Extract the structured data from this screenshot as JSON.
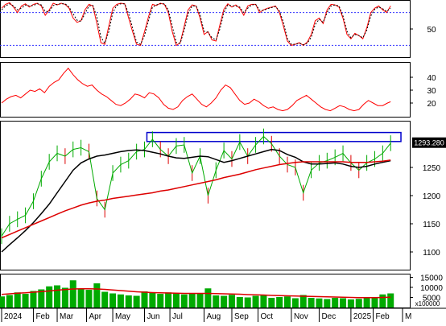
{
  "chart_data": [
    {
      "type": "line",
      "panel": "stochastic",
      "ylim": [
        0,
        100
      ],
      "y_ticks": [
        50
      ],
      "reference_lines": [
        80,
        20
      ],
      "grid": false,
      "series": [
        {
          "role": "k",
          "color": "#ff0000",
          "style": "solid"
        },
        {
          "role": "d",
          "color": "#000000",
          "style": "dashed"
        }
      ],
      "x": [
        0,
        5,
        10,
        15,
        20,
        25,
        30,
        35,
        40,
        45,
        50,
        55,
        60,
        65,
        70,
        75,
        80,
        85,
        90,
        95,
        100,
        105,
        110,
        115,
        120,
        125,
        130,
        135,
        140,
        145,
        150,
        155,
        160,
        165,
        170,
        175,
        180,
        185,
        190,
        195,
        200,
        205,
        210,
        215,
        220,
        225,
        230,
        235,
        240,
        245,
        250,
        255,
        260,
        265,
        270,
        275,
        280,
        285,
        290,
        295,
        300,
        305,
        310,
        315,
        320,
        325,
        330,
        335,
        340,
        345,
        350,
        355,
        360,
        365,
        370,
        375,
        380,
        385,
        390,
        395,
        400,
        405,
        410,
        415,
        420,
        425,
        430,
        435,
        440,
        445,
        450,
        455,
        460,
        465,
        470,
        475,
        480,
        485,
        490
      ],
      "values_k": [
        88,
        95,
        98,
        90,
        80,
        92,
        96,
        90,
        95,
        97,
        92,
        75,
        85,
        97,
        94,
        97,
        95,
        88,
        70,
        62,
        65,
        85,
        95,
        92,
        60,
        25,
        22,
        55,
        88,
        95,
        97,
        96,
        70,
        45,
        22,
        20,
        45,
        72,
        95,
        93,
        97,
        95,
        80,
        45,
        20,
        25,
        55,
        85,
        94,
        92,
        70,
        40,
        45,
        30,
        28,
        58,
        86,
        96,
        90,
        94,
        88,
        75,
        92,
        95,
        95,
        80,
        85,
        88,
        90,
        92,
        80,
        55,
        28,
        20,
        22,
        25,
        20,
        26,
        40,
        65,
        70,
        60,
        85,
        95,
        94,
        90,
        70,
        40,
        32,
        42,
        38,
        32,
        52,
        80,
        88,
        92,
        85,
        80,
        92
      ],
      "values_d": [
        85,
        92,
        96,
        92,
        85,
        88,
        94,
        92,
        93,
        96,
        94,
        82,
        82,
        93,
        95,
        96,
        96,
        90,
        78,
        66,
        64,
        78,
        92,
        93,
        72,
        35,
        24,
        45,
        80,
        93,
        96,
        96,
        78,
        52,
        26,
        22,
        38,
        65,
        90,
        94,
        96,
        96,
        85,
        55,
        25,
        24,
        48,
        78,
        92,
        92,
        76,
        46,
        44,
        34,
        30,
        50,
        80,
        94,
        92,
        92,
        90,
        80,
        88,
        94,
        95,
        84,
        84,
        87,
        89,
        91,
        83,
        62,
        32,
        22,
        22,
        24,
        21,
        24,
        35,
        58,
        68,
        62,
        80,
        92,
        94,
        92,
        74,
        46,
        34,
        40,
        38,
        34,
        48,
        74,
        86,
        90,
        87,
        82,
        88
      ]
    },
    {
      "type": "line",
      "panel": "indicator",
      "ylim": [
        10,
        50
      ],
      "y_ticks": [
        20,
        30,
        40
      ],
      "grid": false,
      "series": [
        {
          "color": "#ff0000"
        }
      ],
      "x": [
        0,
        6,
        12,
        18,
        24,
        30,
        36,
        42,
        48,
        54,
        60,
        66,
        72,
        78,
        84,
        90,
        96,
        102,
        108,
        114,
        120,
        126,
        132,
        138,
        144,
        150,
        156,
        162,
        168,
        174,
        180,
        186,
        192,
        198,
        204,
        210,
        216,
        222,
        228,
        234,
        240,
        246,
        252,
        258,
        264,
        270,
        276,
        282,
        288,
        294,
        300,
        306,
        312,
        318,
        324,
        330,
        336,
        342,
        348,
        354,
        360,
        366,
        372,
        378,
        384,
        390,
        396,
        402,
        408,
        414,
        420,
        426,
        432,
        438,
        444,
        450,
        456,
        462,
        468,
        474,
        480,
        486,
        490
      ],
      "values": [
        20,
        23,
        25,
        26,
        24,
        27,
        30,
        29,
        31,
        28,
        33,
        36,
        38,
        43,
        47,
        42,
        38,
        35,
        33,
        34,
        30,
        27,
        25,
        22,
        19,
        18,
        20,
        23,
        27,
        26,
        24,
        28,
        27,
        24,
        19,
        16,
        15,
        17,
        22,
        25,
        27,
        23,
        19,
        17,
        20,
        24,
        30,
        34,
        32,
        27,
        22,
        19,
        20,
        23,
        21,
        18,
        16,
        17,
        15,
        14,
        15,
        18,
        22,
        24,
        26,
        23,
        20,
        17,
        15,
        14,
        16,
        18,
        17,
        15,
        14,
        15,
        19,
        22,
        20,
        18,
        18,
        20,
        21
      ]
    },
    {
      "type": "line",
      "panel": "price",
      "price_label": "1293.280",
      "ylim": [
        1070,
        1330
      ],
      "y_ticks": [
        1100,
        1150,
        1200,
        1250
      ],
      "grid": false,
      "resistance_box": {
        "x0": 183,
        "x1": 503,
        "y_top": 1312,
        "y_bottom": 1296,
        "color": "#0000cc"
      },
      "series": [
        {
          "name": "",
          "role": "close",
          "color": "#00aa00"
        },
        {
          "name": "",
          "role": "ma50",
          "color": "#000000"
        },
        {
          "name": "",
          "role": "ma200",
          "color": "#dd0000"
        }
      ],
      "x": [
        0,
        10,
        20,
        30,
        40,
        50,
        60,
        70,
        80,
        90,
        100,
        110,
        120,
        130,
        140,
        150,
        160,
        170,
        180,
        190,
        200,
        210,
        220,
        230,
        240,
        250,
        260,
        270,
        280,
        290,
        300,
        310,
        320,
        330,
        340,
        350,
        360,
        370,
        380,
        390,
        400,
        410,
        420,
        430,
        440,
        450,
        460,
        470,
        480,
        490
      ],
      "close": [
        1128,
        1150,
        1158,
        1165,
        1190,
        1230,
        1260,
        1275,
        1270,
        1282,
        1285,
        1278,
        1195,
        1175,
        1240,
        1255,
        1262,
        1278,
        1282,
        1300,
        1282,
        1270,
        1288,
        1290,
        1240,
        1270,
        1200,
        1245,
        1280,
        1265,
        1295,
        1270,
        1290,
        1305,
        1292,
        1270,
        1255,
        1250,
        1205,
        1245,
        1258,
        1262,
        1268,
        1275,
        1258,
        1245,
        1258,
        1265,
        1275,
        1293
      ],
      "ma50": [
        1100,
        1113,
        1125,
        1138,
        1152,
        1168,
        1185,
        1205,
        1225,
        1245,
        1258,
        1265,
        1270,
        1272,
        1275,
        1278,
        1280,
        1281,
        1280,
        1277,
        1274,
        1270,
        1267,
        1266,
        1268,
        1270,
        1269,
        1264,
        1259,
        1262,
        1266,
        1270,
        1274,
        1278,
        1282,
        1280,
        1273,
        1268,
        1260,
        1256,
        1256,
        1257,
        1258,
        1256,
        1252,
        1250,
        1252,
        1256,
        1259,
        1262
      ],
      "ma200": [
        1125,
        1131,
        1137,
        1143,
        1149,
        1155,
        1161,
        1167,
        1173,
        1178,
        1183,
        1187,
        1190,
        1192,
        1195,
        1197,
        1199,
        1201,
        1203,
        1205,
        1208,
        1210,
        1213,
        1216,
        1219,
        1222,
        1225,
        1228,
        1232,
        1235,
        1238,
        1242,
        1246,
        1249,
        1252,
        1255,
        1257,
        1259,
        1260,
        1260,
        1260,
        1260,
        1260,
        1260,
        1259,
        1259,
        1259,
        1260,
        1261,
        1263
      ]
    },
    {
      "type": "bar",
      "panel": "volume",
      "unit_label": "x100000",
      "ylim": [
        0,
        16000
      ],
      "y_ticks": [
        5000,
        10000,
        15000
      ],
      "grid": false,
      "bar_color": "#00aa00",
      "ma_color": "#dd0000",
      "x": [
        0,
        10,
        20,
        30,
        40,
        50,
        60,
        70,
        80,
        90,
        100,
        110,
        120,
        130,
        140,
        150,
        160,
        170,
        180,
        190,
        200,
        210,
        220,
        230,
        240,
        250,
        260,
        270,
        280,
        290,
        300,
        310,
        320,
        330,
        340,
        350,
        360,
        370,
        380,
        390,
        400,
        410,
        420,
        430,
        440,
        450,
        460,
        470,
        480,
        490
      ],
      "values": [
        5500,
        6200,
        7500,
        6800,
        8200,
        9000,
        10500,
        11000,
        9800,
        13500,
        9200,
        8800,
        12000,
        7800,
        7000,
        6500,
        6000,
        5800,
        8000,
        7200,
        6800,
        7500,
        7000,
        6500,
        6800,
        7200,
        9500,
        6000,
        5800,
        6300,
        5200,
        5000,
        5800,
        6000,
        4800,
        5200,
        5500,
        4600,
        6200,
        4800,
        4500,
        4200,
        4800,
        4600,
        4000,
        4300,
        5000,
        4700,
        6500,
        7000
      ],
      "ma": [
        6500,
        6800,
        7100,
        7300,
        7600,
        7900,
        8200,
        8600,
        8900,
        9200,
        9300,
        9300,
        9200,
        9000,
        8700,
        8400,
        8100,
        7800,
        7600,
        7400,
        7300,
        7200,
        7100,
        7000,
        7000,
        7000,
        7000,
        6900,
        6800,
        6700,
        6600,
        6400,
        6300,
        6200,
        6000,
        5900,
        5800,
        5700,
        5600,
        5500,
        5400,
        5300,
        5200,
        5100,
        5000,
        4900,
        4900,
        4900,
        5000,
        5100
      ]
    }
  ],
  "x_axis": {
    "months": [
      "2024",
      "Feb",
      "Mar",
      "Apr",
      "May",
      "Jun",
      "Jul",
      "Aug",
      "Sep",
      "Oct",
      "Nov",
      "Dec",
      "2025",
      "Feb",
      "M"
    ],
    "positions": [
      0,
      40,
      70,
      107,
      140,
      180,
      212,
      255,
      290,
      323,
      365,
      400,
      440,
      468,
      505
    ]
  },
  "colors": {
    "axis": "#000000",
    "dotted_ref": "#3333ff",
    "price_tag_bg": "#000000",
    "price_tag_fg": "#ffffff"
  }
}
